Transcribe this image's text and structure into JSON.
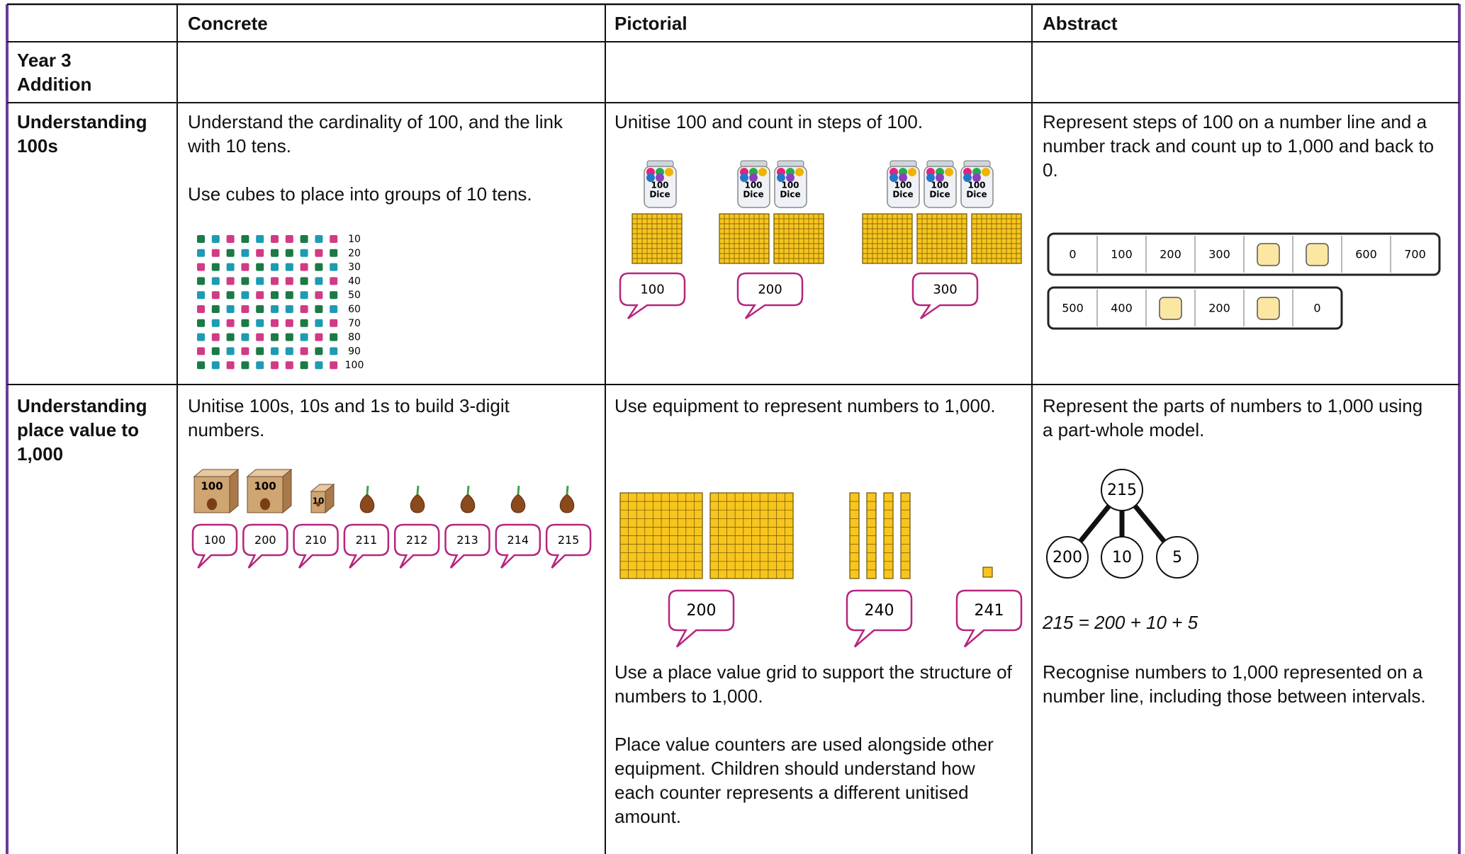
{
  "table": {
    "headers": [
      "Concrete",
      "Pictorial",
      "Abstract"
    ],
    "section": [
      "Year 3",
      "Addition"
    ],
    "rows": [
      {
        "label": "Understanding 100s",
        "concrete": [
          "Understand the cardinality of 100, and the link with 10 tens.",
          "Use cubes to place into groups of 10 tens."
        ],
        "cube_counts": [
          "10",
          "20",
          "30",
          "40",
          "50",
          "60",
          "70",
          "80",
          "90",
          "100"
        ],
        "pictorial": [
          "Unitise 100 and count in steps of 100."
        ],
        "jar_label": [
          "100",
          "Dice"
        ],
        "bubbles": [
          "100",
          "200",
          "300"
        ],
        "abstract": [
          "Represent steps of 100 on a number line and a number track and count up to 1,000 and back to 0."
        ],
        "track_up": [
          "0",
          "100",
          "200",
          "300",
          null,
          null,
          "600",
          "700"
        ],
        "track_down": [
          "500",
          "400",
          null,
          "200",
          null,
          "0"
        ]
      },
      {
        "label": "Understanding place value to 1,000",
        "concrete": [
          "Unitise 100s, 10s and 1s to build 3-digit numbers."
        ],
        "box_labels": [
          "100",
          "100",
          "10"
        ],
        "bubbles": [
          "100",
          "200",
          "210",
          "211",
          "212",
          "213",
          "214",
          "215"
        ],
        "pictorial": [
          "Use equipment to represent numbers to 1,000."
        ],
        "base_ten_bubbles": [
          "200",
          "240",
          "241"
        ],
        "pictorial_after": [
          "Use a place value grid to support the structure of numbers to 1,000.",
          "Place value counters are used alongside other equipment. Children should understand how each counter represents a different unitised amount."
        ],
        "abstract": [
          "Represent the parts of numbers to 1,000 using a part-whole model."
        ],
        "part_whole": {
          "whole": "215",
          "parts": [
            "200",
            "10",
            "5"
          ]
        },
        "equation": "215 = 200 + 10 + 5",
        "abstract_after": [
          "Recognise numbers to 1,000 represented on a number line, including those between intervals."
        ]
      }
    ]
  }
}
